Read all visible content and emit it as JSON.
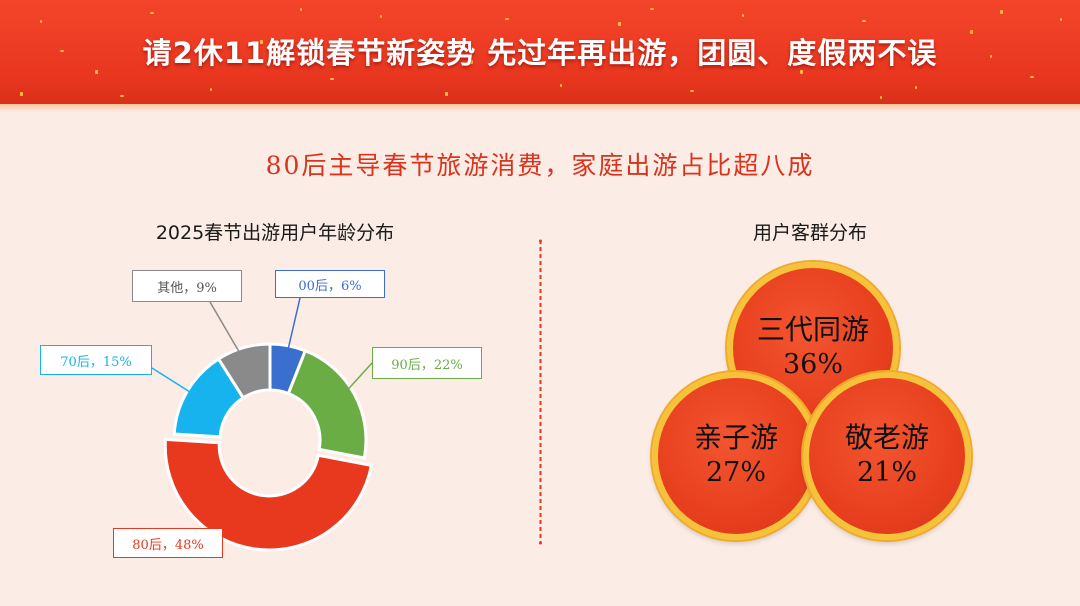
{
  "banner": {
    "title": "请2休11解锁春节新姿势  先过年再出游，团圆、度假两不误"
  },
  "subtitle": "80后主导春节旅游消费，家庭出游占比超八成",
  "colors": {
    "accent": "#e8361f",
    "gold": "#f6c23a"
  },
  "chart_data": [
    {
      "type": "pie",
      "title": "2025春节出游用户年龄分布",
      "slices": [
        {
          "label": "00后，6%",
          "value": 6,
          "color": "#3a6fd0"
        },
        {
          "label": "90后，22%",
          "value": 22,
          "color": "#6aad45"
        },
        {
          "label": "80后，48%",
          "value": 48,
          "color": "#e8391f"
        },
        {
          "label": "70后，15%",
          "value": 15,
          "color": "#16b3ee"
        },
        {
          "label": "其他，9%",
          "value": 9,
          "color": "#8a8a8a"
        }
      ]
    },
    {
      "type": "table",
      "title": "用户客群分布",
      "groups": [
        {
          "label": "三代同游",
          "value": "36%"
        },
        {
          "label": "亲子游",
          "value": "27%"
        },
        {
          "label": "敬老游",
          "value": "21%"
        }
      ]
    }
  ]
}
